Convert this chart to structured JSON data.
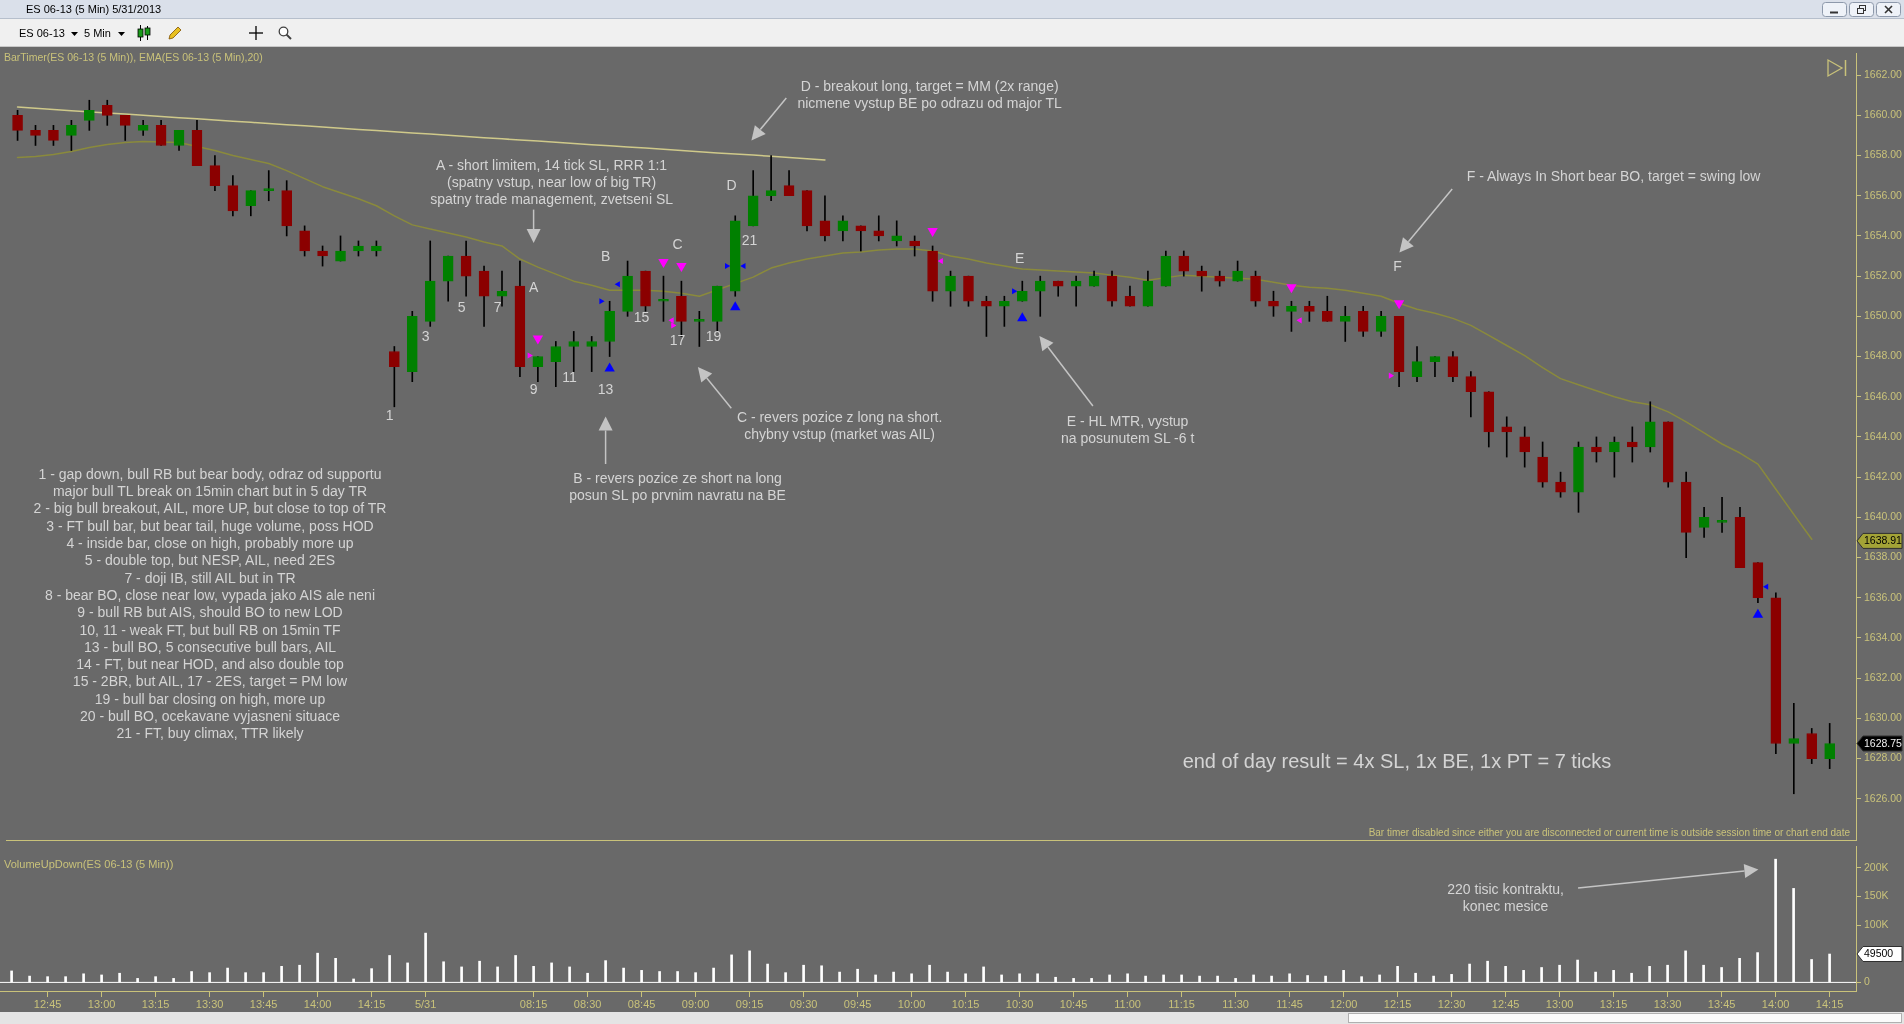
{
  "chart_data": [
    {
      "type": "candlestick",
      "title": "ES 06-13 (5 Min) 5/31/2013",
      "categories": [
        null,
        null,
        null,
        null,
        null,
        null,
        null,
        null,
        null,
        null,
        null,
        null,
        null,
        null,
        null,
        null,
        null,
        null,
        null,
        null,
        null,
        null,
        null,
        null,
        null,
        null,
        null,
        null,
        null,
        null,
        null,
        null,
        null,
        null,
        null,
        null,
        null,
        null,
        null,
        null,
        null,
        null,
        null,
        null,
        null,
        null,
        null,
        null,
        null,
        null,
        null,
        null,
        null,
        null,
        null,
        null,
        null,
        null,
        null,
        null,
        null,
        null,
        null,
        null,
        null,
        null,
        null,
        null,
        null,
        null,
        null,
        null,
        null,
        null,
        null,
        null,
        null,
        null,
        null,
        null,
        null,
        null,
        null,
        null,
        null,
        null,
        null,
        null,
        null,
        null,
        null,
        null,
        null,
        null,
        null,
        null,
        null,
        null,
        null,
        null,
        null,
        null
      ],
      "ohlc": [
        [
          1660.0,
          1660.25,
          1658.75,
          1659.25
        ],
        [
          1659.25,
          1659.5,
          1658.5,
          1659.0
        ],
        [
          1659.25,
          1659.5,
          1658.5,
          1658.75
        ],
        [
          1659.0,
          1659.75,
          1658.25,
          1659.5
        ],
        [
          1659.75,
          1660.75,
          1659.25,
          1660.25
        ],
        [
          1660.5,
          1660.75,
          1659.5,
          1660.0
        ],
        [
          1660.0,
          1660.0,
          1658.75,
          1659.5
        ],
        [
          1659.25,
          1659.75,
          1659.0,
          1659.5
        ],
        [
          1659.5,
          1659.75,
          1658.5,
          1658.5
        ],
        [
          1658.5,
          1659.25,
          1658.25,
          1659.25
        ],
        [
          1659.25,
          1659.75,
          1657.5,
          1657.5
        ],
        [
          1657.5,
          1658.0,
          1656.25,
          1656.5
        ],
        [
          1656.5,
          1657.0,
          1655.0,
          1655.25
        ],
        [
          1655.5,
          1656.25,
          1655.0,
          1656.25
        ],
        [
          1656.25,
          1657.25,
          1655.75,
          1656.25
        ],
        [
          1656.25,
          1656.75,
          1654.0,
          1654.5
        ],
        [
          1654.25,
          1654.5,
          1653.0,
          1653.25
        ],
        [
          1653.25,
          1653.5,
          1652.5,
          1653.0
        ],
        [
          1652.75,
          1654.0,
          1652.75,
          1653.25
        ],
        [
          1653.25,
          1653.75,
          1653.0,
          1653.5
        ],
        [
          1653.25,
          1653.75,
          1653.0,
          1653.5
        ],
        [
          1648.25,
          1648.5,
          1645.5,
          1647.5
        ],
        [
          1647.25,
          1650.25,
          1646.75,
          1650.0
        ],
        [
          1649.75,
          1653.75,
          1649.5,
          1651.75
        ],
        [
          1651.75,
          1653.0,
          1650.75,
          1653.0
        ],
        [
          1653.0,
          1653.75,
          1651.0,
          1652.0
        ],
        [
          1652.25,
          1652.5,
          1649.5,
          1651.0
        ],
        [
          1651.0,
          1652.25,
          1650.5,
          1651.25
        ],
        [
          1651.5,
          1652.75,
          1647.0,
          1647.5
        ],
        [
          1647.5,
          1648.0,
          1646.75,
          1648.0
        ],
        [
          1647.75,
          1648.75,
          1646.5,
          1648.5
        ],
        [
          1648.5,
          1649.25,
          1647.25,
          1648.75
        ],
        [
          1648.5,
          1649.0,
          1647.25,
          1648.75
        ],
        [
          1648.75,
          1650.75,
          1648.0,
          1650.25
        ],
        [
          1650.25,
          1652.75,
          1650.0,
          1652.0
        ],
        [
          1652.25,
          1652.25,
          1650.25,
          1650.5
        ],
        [
          1650.75,
          1652.0,
          1649.75,
          1650.75
        ],
        [
          1651.0,
          1651.75,
          1649.0,
          1649.75
        ],
        [
          1649.75,
          1650.25,
          1648.5,
          1649.75
        ],
        [
          1649.75,
          1651.5,
          1649.25,
          1651.5
        ],
        [
          1651.25,
          1655.0,
          1651.0,
          1654.75
        ],
        [
          1654.5,
          1657.25,
          1654.5,
          1656.0
        ],
        [
          1656.0,
          1658.0,
          1655.75,
          1656.25
        ],
        [
          1656.5,
          1657.25,
          1656.0,
          1656.0
        ],
        [
          1656.25,
          1656.25,
          1654.25,
          1654.5
        ],
        [
          1654.75,
          1656.0,
          1653.75,
          1654.0
        ],
        [
          1654.25,
          1655.0,
          1653.75,
          1654.75
        ],
        [
          1654.5,
          1654.5,
          1653.25,
          1654.25
        ],
        [
          1654.25,
          1655.0,
          1653.75,
          1654.0
        ],
        [
          1653.75,
          1654.75,
          1653.5,
          1654.0
        ],
        [
          1653.75,
          1654.0,
          1653.0,
          1653.5
        ],
        [
          1653.25,
          1653.5,
          1650.75,
          1651.25
        ],
        [
          1651.25,
          1652.25,
          1650.5,
          1652.0
        ],
        [
          1652.0,
          1652.0,
          1650.5,
          1650.75
        ],
        [
          1650.75,
          1651.0,
          1649.0,
          1650.5
        ],
        [
          1650.5,
          1651.0,
          1649.5,
          1650.75
        ],
        [
          1650.75,
          1651.75,
          1650.75,
          1651.25
        ],
        [
          1651.25,
          1652.0,
          1650.0,
          1651.75
        ],
        [
          1651.75,
          1651.75,
          1651.0,
          1651.5
        ],
        [
          1651.5,
          1652.0,
          1650.5,
          1651.75
        ],
        [
          1651.5,
          1652.25,
          1651.5,
          1652.0
        ],
        [
          1652.0,
          1652.25,
          1650.5,
          1650.75
        ],
        [
          1651.0,
          1651.5,
          1650.5,
          1650.5
        ],
        [
          1650.5,
          1652.25,
          1650.5,
          1651.75
        ],
        [
          1651.5,
          1653.25,
          1651.5,
          1653.0
        ],
        [
          1653.0,
          1653.25,
          1652.0,
          1652.25
        ],
        [
          1652.25,
          1652.5,
          1651.25,
          1652.0
        ],
        [
          1652.0,
          1652.25,
          1651.5,
          1651.75
        ],
        [
          1651.75,
          1652.75,
          1651.75,
          1652.25
        ],
        [
          1652.0,
          1652.25,
          1650.5,
          1650.75
        ],
        [
          1650.75,
          1651.25,
          1650.0,
          1650.5
        ],
        [
          1650.25,
          1650.75,
          1649.25,
          1650.5
        ],
        [
          1650.5,
          1650.75,
          1649.75,
          1650.25
        ],
        [
          1650.25,
          1651.0,
          1649.75,
          1649.75
        ],
        [
          1649.75,
          1650.5,
          1648.75,
          1650.0
        ],
        [
          1650.25,
          1650.5,
          1649.0,
          1649.25
        ],
        [
          1649.25,
          1650.25,
          1649.0,
          1650.0
        ],
        [
          1650.0,
          1650.0,
          1646.5,
          1647.25
        ],
        [
          1647.0,
          1648.5,
          1646.75,
          1647.75
        ],
        [
          1647.75,
          1648.0,
          1647.0,
          1648.0
        ],
        [
          1648.0,
          1648.25,
          1646.75,
          1647.0
        ],
        [
          1647.0,
          1647.25,
          1645.0,
          1646.25
        ],
        [
          1646.25,
          1646.25,
          1643.5,
          1644.25
        ],
        [
          1644.5,
          1645.0,
          1643.0,
          1644.25
        ],
        [
          1644.0,
          1644.5,
          1642.5,
          1643.25
        ],
        [
          1643.0,
          1643.75,
          1641.5,
          1641.75
        ],
        [
          1641.75,
          1642.25,
          1641.0,
          1641.25
        ],
        [
          1641.25,
          1643.75,
          1640.25,
          1643.5
        ],
        [
          1643.5,
          1644.0,
          1642.75,
          1643.25
        ],
        [
          1643.25,
          1644.0,
          1642.0,
          1643.75
        ],
        [
          1643.75,
          1644.5,
          1642.75,
          1643.5
        ],
        [
          1643.5,
          1645.75,
          1643.25,
          1644.75
        ],
        [
          1644.75,
          1644.75,
          1641.5,
          1641.75
        ],
        [
          1641.75,
          1642.25,
          1638.0,
          1639.25
        ],
        [
          1639.5,
          1640.5,
          1639.0,
          1640.0
        ],
        [
          1639.75,
          1641.0,
          1639.25,
          1639.75
        ],
        [
          1640.0,
          1640.5,
          1637.5,
          1637.5
        ],
        [
          1637.75,
          1637.75,
          1635.75,
          1636.0
        ],
        [
          1636.0,
          1636.25,
          1628.25,
          1628.75
        ],
        [
          1628.75,
          1630.75,
          1626.25,
          1629.0
        ],
        [
          1629.25,
          1629.5,
          1627.75,
          1628.0
        ],
        [
          1628.0,
          1629.75,
          1627.5,
          1628.75
        ]
      ],
      "colors": [
        "#8b0000",
        "#8b0000",
        "#8b0000",
        "#008000",
        "#008000",
        "#8b0000",
        "#8b0000",
        "#008000",
        "#8b0000",
        "#008000",
        "#8b0000",
        "#8b0000",
        "#8b0000",
        "#008000",
        "#008000",
        "#8b0000",
        "#8b0000",
        "#8b0000",
        "#008000",
        "#008000",
        "#008000",
        "#8b0000",
        "#008000",
        "#008000",
        "#008000",
        "#8b0000",
        "#8b0000",
        "#008000",
        "#8b0000",
        "#008000",
        "#008000",
        "#008000",
        "#008000",
        "#008000",
        "#008000",
        "#8b0000",
        "#008000",
        "#8b0000",
        "#008000",
        "#008000",
        "#008000",
        "#008000",
        "#008000",
        "#8b0000",
        "#8b0000",
        "#8b0000",
        "#008000",
        "#8b0000",
        "#8b0000",
        "#008000",
        "#8b0000",
        "#8b0000",
        "#008000",
        "#8b0000",
        "#8b0000",
        "#008000",
        "#008000",
        "#008000",
        "#8b0000",
        "#008000",
        "#008000",
        "#8b0000",
        "#8b0000",
        "#008000",
        "#008000",
        "#8b0000",
        "#8b0000",
        "#8b0000",
        "#008000",
        "#8b0000",
        "#8b0000",
        "#008000",
        "#8b0000",
        "#8b0000",
        "#008000",
        "#8b0000",
        "#008000",
        "#8b0000",
        "#008000",
        "#008000",
        "#8b0000",
        "#8b0000",
        "#8b0000",
        "#8b0000",
        "#8b0000",
        "#8b0000",
        "#8b0000",
        "#008000",
        "#8b0000",
        "#008000",
        "#8b0000",
        "#008000",
        "#8b0000",
        "#8b0000",
        "#008000",
        "#008000",
        "#8b0000",
        "#8b0000",
        "#8b0000",
        "#008000",
        "#8b0000",
        "#008000"
      ],
      "value_labels": [
        null,
        null,
        null,
        null,
        null,
        null,
        null,
        null,
        null,
        null,
        null,
        null,
        null,
        null,
        null,
        null,
        null,
        null,
        null,
        null,
        null,
        null,
        null,
        null,
        null,
        null,
        null,
        null,
        null,
        null,
        null,
        null,
        null,
        null,
        null,
        null,
        null,
        null,
        null,
        null,
        null,
        null,
        null,
        null,
        null,
        null,
        null,
        null,
        null,
        null,
        null,
        null,
        null,
        null,
        null,
        null,
        null,
        null,
        null,
        null,
        null,
        null,
        null,
        null,
        null,
        null,
        null,
        null,
        null,
        null,
        null,
        null,
        null,
        null,
        null,
        null,
        null,
        null,
        null,
        null,
        null,
        null,
        null,
        null,
        null,
        null,
        null,
        null,
        null,
        null,
        null,
        null,
        null,
        null,
        null,
        null,
        null,
        null,
        null,
        null,
        null,
        "1628.75"
      ],
      "series": [
        {
          "type": "line",
          "color": "#8a8a3c",
          "values": [
            1657.9,
            1657.95,
            1658.05,
            1658.2,
            1658.4,
            1658.55,
            1658.65,
            1658.7,
            null,
            1658.65,
            null,
            1658.25,
            1658.0,
            1657.8,
            1657.6,
            1657.25,
            1656.85,
            1656.45,
            1656.15,
            1655.85,
            1655.5,
            1655.0,
            1654.55,
            1654.35,
            1654.15,
            1653.95,
            1653.7,
            1653.5,
            1652.85,
            1652.45,
            1652.1,
            1651.75,
            1651.55,
            1651.3,
            null,
            1651.3,
            1651.25,
            1651.15,
            1651.0,
            null,
            null,
            1651.95,
            1652.4,
            1652.65,
            1652.85,
            1653.0,
            1653.15,
            1653.2,
            1653.3,
            1653.35,
            1653.35,
            1653.25,
            1653.0,
            1652.85,
            1652.65,
            1652.5,
            1652.35,
            1652.3,
            1652.25,
            1652.2,
            1652.15,
            1652.05,
            1651.95,
            1651.8,
            null,
            1652.05,
            1652.0,
            1651.95,
            null,
            1651.85,
            1651.7,
            1651.55,
            1651.45,
            1651.4,
            1651.3,
            1651.15,
            1651.0,
            1650.65,
            1650.35,
            1650.15,
            1649.9,
            1649.55,
            1649.05,
            1648.55,
            1648.05,
            1647.45,
            1646.9,
            1646.6,
            1646.3,
            1646.0,
            1645.75,
            1645.6,
            1645.25,
            1644.75,
            1644.2,
            1643.65,
            1643.2,
            1642.65,
            1641.4,
            1640.15,
            1638.91,
            null
          ]
        },
        {
          "type": "line",
          "color": "#cfc98a",
          "values": [
            1660.41,
            1660.35,
            1660.29,
            1660.23,
            null,
            1660.12,
            1660.06,
            1660.0,
            1659.94,
            1659.88,
            1659.83,
            1659.77,
            1659.71,
            1659.65,
            1659.59,
            1659.53,
            1659.48,
            1659.42,
            1659.36,
            1659.3,
            1659.24,
            1659.18,
            1659.12,
            1659.07,
            1659.01,
            1658.95,
            1658.89,
            1658.83,
            1658.77,
            1658.72,
            1658.66,
            1658.6,
            1658.54,
            1658.48,
            1658.42,
            1658.37,
            1658.31,
            1658.25,
            1658.19,
            1658.13,
            1658.07,
            1658.02,
            1657.96,
            1657.9,
            1657.84,
            1657.78,
            null,
            null,
            null,
            null,
            null,
            null,
            null,
            null,
            null,
            null,
            null,
            null,
            null,
            null,
            null,
            null,
            null,
            null,
            null,
            null,
            null,
            null,
            null,
            null,
            null,
            null,
            null,
            null,
            null,
            null,
            null,
            null,
            null,
            null,
            null,
            null,
            null,
            null,
            null,
            null,
            null,
            null,
            null,
            null,
            null,
            null,
            null,
            null,
            null,
            null,
            null,
            null,
            null,
            null,
            null,
            null
          ]
        },
        {
          "type": "scatter",
          "color": "#0000ff",
          "marker": "triangle",
          "values": [
            null,
            null,
            null,
            null,
            null,
            null,
            null,
            null,
            null,
            null,
            null,
            null,
            null,
            null,
            null,
            null,
            null,
            null,
            null,
            null,
            null,
            null,
            null,
            null,
            null,
            null,
            null,
            null,
            null,
            null,
            null,
            null,
            null,
            1647.4,
            null,
            null,
            null,
            null,
            null,
            null,
            1650.45,
            null,
            null,
            null,
            null,
            null,
            null,
            null,
            null,
            null,
            null,
            null,
            null,
            null,
            null,
            null,
            1649.9,
            null,
            null,
            null,
            null,
            null,
            null,
            null,
            null,
            null,
            null,
            null,
            null,
            null,
            null,
            null,
            null,
            null,
            null,
            null,
            null,
            null,
            null,
            null,
            null,
            null,
            null,
            null,
            null,
            null,
            null,
            null,
            null,
            null,
            null,
            null,
            null,
            null,
            null,
            null,
            null,
            1635.15,
            null,
            null,
            null,
            null
          ]
        },
        {
          "type": "scatter",
          "color": "#ff00ff",
          "marker": "triangle",
          "values": [
            null,
            null,
            null,
            null,
            null,
            null,
            null,
            null,
            null,
            null,
            null,
            null,
            null,
            null,
            null,
            null,
            null,
            null,
            null,
            null,
            null,
            null,
            null,
            null,
            null,
            null,
            null,
            null,
            null,
            1648.9,
            null,
            null,
            null,
            null,
            null,
            null,
            1652.7,
            1652.5,
            null,
            null,
            null,
            null,
            null,
            null,
            null,
            null,
            null,
            null,
            null,
            null,
            null,
            1654.25,
            null,
            null,
            null,
            null,
            null,
            null,
            null,
            null,
            null,
            null,
            null,
            null,
            null,
            null,
            null,
            null,
            null,
            null,
            null,
            1651.45,
            null,
            null,
            null,
            null,
            null,
            1650.65,
            null,
            null,
            null,
            null,
            null,
            null,
            null,
            null,
            null,
            null,
            null,
            null,
            null,
            null,
            null,
            null,
            null,
            null,
            null,
            null,
            null,
            null,
            null,
            null
          ]
        },
        {
          "type": "scatter",
          "color": "#0000ff",
          "marker": "triangle",
          "values": [
            null,
            null,
            null,
            null,
            null,
            null,
            null,
            null,
            null,
            null,
            null,
            null,
            null,
            null,
            null,
            null,
            null,
            null,
            null,
            null,
            null,
            null,
            null,
            null,
            null,
            null,
            null,
            null,
            null,
            null,
            null,
            null,
            null,
            1650.75,
            null,
            null,
            null,
            null,
            null,
            null,
            1652.5,
            null,
            null,
            null,
            null,
            null,
            null,
            null,
            null,
            null,
            null,
            null,
            null,
            null,
            null,
            null,
            1651.25,
            null,
            null,
            null,
            null,
            null,
            null,
            null,
            null,
            null,
            null,
            null,
            null,
            null,
            null,
            null,
            null,
            null,
            null,
            null,
            null,
            null,
            null,
            null,
            null,
            null,
            null,
            null,
            null,
            null,
            null,
            null,
            null,
            null,
            null,
            null,
            null,
            null,
            null,
            null,
            null,
            null,
            null,
            null,
            null,
            null
          ]
        },
        {
          "type": "scatter",
          "color": "#0000ff",
          "marker": "triangle",
          "values": [
            null,
            null,
            null,
            null,
            null,
            null,
            null,
            null,
            null,
            null,
            null,
            null,
            null,
            null,
            null,
            null,
            null,
            null,
            null,
            null,
            null,
            null,
            null,
            null,
            null,
            null,
            null,
            null,
            null,
            null,
            null,
            null,
            null,
            1651.6,
            null,
            null,
            null,
            null,
            null,
            null,
            1652.5,
            null,
            null,
            null,
            null,
            null,
            null,
            null,
            null,
            null,
            null,
            null,
            null,
            null,
            null,
            null,
            null,
            null,
            null,
            null,
            null,
            null,
            null,
            null,
            null,
            null,
            null,
            null,
            null,
            null,
            null,
            null,
            null,
            null,
            null,
            null,
            null,
            null,
            null,
            null,
            null,
            null,
            null,
            null,
            null,
            null,
            null,
            null,
            null,
            null,
            null,
            null,
            null,
            null,
            null,
            null,
            null,
            1636.55,
            null,
            null,
            null,
            null
          ]
        },
        {
          "type": "scatter",
          "color": "#ff00ff",
          "marker": "triangle",
          "values": [
            null,
            null,
            null,
            null,
            null,
            null,
            null,
            null,
            null,
            null,
            null,
            null,
            null,
            null,
            null,
            null,
            null,
            null,
            null,
            null,
            null,
            null,
            null,
            null,
            null,
            null,
            null,
            null,
            null,
            1648.05,
            null,
            null,
            null,
            null,
            null,
            null,
            null,
            1649.55,
            null,
            null,
            null,
            null,
            null,
            null,
            null,
            null,
            null,
            null,
            null,
            null,
            null,
            null,
            null,
            null,
            null,
            null,
            null,
            null,
            null,
            null,
            null,
            null,
            null,
            null,
            null,
            null,
            null,
            null,
            null,
            null,
            null,
            null,
            null,
            null,
            null,
            null,
            null,
            1647.05,
            null,
            null,
            null,
            null,
            null,
            null,
            null,
            null,
            null,
            null,
            null,
            null,
            null,
            null,
            null,
            null,
            null,
            null,
            null,
            null,
            null,
            null,
            null,
            null
          ]
        },
        {
          "type": "scatter",
          "color": "#ff00ff",
          "marker": "triangle",
          "values": [
            null,
            null,
            null,
            null,
            null,
            null,
            null,
            null,
            null,
            null,
            null,
            null,
            null,
            null,
            null,
            null,
            null,
            null,
            null,
            null,
            null,
            null,
            null,
            null,
            null,
            null,
            null,
            null,
            null,
            null,
            null,
            null,
            null,
            null,
            null,
            null,
            1649.8,
            null,
            null,
            null,
            null,
            null,
            null,
            null,
            null,
            null,
            null,
            null,
            null,
            null,
            null,
            1652.75,
            null,
            null,
            null,
            null,
            null,
            null,
            null,
            null,
            null,
            null,
            null,
            null,
            null,
            null,
            null,
            null,
            null,
            null,
            null,
            1649.8,
            null,
            null,
            null,
            null,
            null,
            null,
            null,
            null,
            null,
            null,
            null,
            null,
            null,
            null,
            null,
            null,
            null,
            null,
            null,
            null,
            null,
            null,
            null,
            null,
            null,
            null,
            null,
            null,
            null,
            null
          ]
        }
      ],
      "ylim": [
        1623.95,
        1663.1
      ],
      "yticks": [
        {
          "value": 1626,
          "label": "1626.00"
        },
        {
          "value": 1628,
          "label": "1628.00"
        },
        {
          "value": 1630,
          "label": "1630.00"
        },
        {
          "value": 1632,
          "label": "1632.00"
        },
        {
          "value": 1634,
          "label": "1634.00"
        },
        {
          "value": 1636,
          "label": "1636.00"
        },
        {
          "value": 1638,
          "label": "1638.00"
        },
        {
          "value": 1640,
          "label": "1640.00"
        },
        {
          "value": 1642,
          "label": "1642.00"
        },
        {
          "value": 1644,
          "label": "1644.00"
        },
        {
          "value": 1646,
          "label": "1646.00"
        },
        {
          "value": 1648,
          "label": "1648.00"
        },
        {
          "value": 1650,
          "label": "1650.00"
        },
        {
          "value": 1652,
          "label": "1652.00"
        },
        {
          "value": 1654,
          "label": "1654.00"
        },
        {
          "value": 1656,
          "label": "1656.00"
        },
        {
          "value": 1658,
          "label": "1658.00"
        },
        {
          "value": 1660,
          "label": "1660.00"
        },
        {
          "value": 1662,
          "label": "1662.00"
        }
      ],
      "annotations": [
        "BarTimer(ES 06-13 (5 Min)), EMA(ES 06-13 (5 Min),20)",
        "1 - gap down, bull RB but bear body, odraz od supportu\nmajor bull TL break on 15min chart but in 5 day TR\n2 - big bull breakout, AIL, more UP, but close to top of TR\n3 - FT bull bar, but bear tail, huge volume, poss HOD\n4 - inside bar, close on high, probably more up\n5 - double top, but NESP, AIL, need 2ES\n7 - doji IB, still AIL but in TR\n8 - bear BO, close near low, vypada jako AIS ale neni\n9 - bull RB but AIS, should BO to new LOD\n10, 11 - weak FT, but bull RB on 15min TF\n13 - bull BO, 5 consecutive bull bars, AIL\n14 - FT, but near HOD, and also double top\n15 - 2BR, but AIL, 17 - 2ES, target = PM low\n19 - bull bar closing on high, more up\n20 - bull BO, ocekavane vyjasneni situace\n21 - FT, buy climax, TTR likely",
        "end of day result = 4x SL, 1x BE, 1x PT = 7 ticks",
        "Bar timer disabled since either you are disconnected or current time is outside session time or chart end date",
        "ES 06-13",
        "5 Min",
        "A - short limitem, 14 tick SL, RRR 1:1\n(spatny vstup, near low of big TR)\nspatny trade management, zvetseni SL",
        "B - revers pozice ze short na long\nposun SL po prvnim navratu na BE",
        "C - revers pozice z long na short.\nchybny vstup (market was AIL)",
        "D - breakout long, target = MM (2x range)\nnicmene vystup BE po odrazu od major TL",
        "E - HL MTR, vystup\nna posunutem SL -6 t",
        "F - Always In Short bear BO, target = swing low",
        "1",
        "3",
        "5",
        "7",
        "A",
        "9",
        "11",
        "B",
        "13",
        "15",
        "C",
        "17",
        "19",
        "D",
        "21",
        "E",
        "F",
        "1638.91"
      ]
    },
    {
      "type": "bar",
      "categories": [
        null,
        null,
        "12:45",
        null,
        null,
        "13:00",
        null,
        null,
        "13:15",
        null,
        null,
        "13:30",
        null,
        null,
        "13:45",
        null,
        null,
        "14:00",
        null,
        null,
        "14:15",
        null,
        null,
        "5/31",
        null,
        null,
        null,
        null,
        null,
        "08:15",
        null,
        null,
        "08:30",
        null,
        null,
        "08:45",
        null,
        null,
        "09:00",
        null,
        null,
        "09:15",
        null,
        null,
        "09:30",
        null,
        null,
        "09:45",
        null,
        null,
        "10:00",
        null,
        null,
        "10:15",
        null,
        null,
        "10:30",
        null,
        null,
        "10:45",
        null,
        null,
        "11:00",
        null,
        null,
        "11:15",
        null,
        null,
        "11:30",
        null,
        null,
        "11:45",
        null,
        null,
        "12:00",
        null,
        null,
        "12:15",
        null,
        null,
        "12:30",
        null,
        null,
        "12:45",
        null,
        null,
        "13:00",
        null,
        null,
        "13:15",
        null,
        null,
        "13:30",
        null,
        null,
        "13:45",
        null,
        null,
        "14:00",
        null,
        null,
        "14:15"
      ],
      "values": [
        20000,
        11000,
        10000,
        10000,
        15000,
        13000,
        16000,
        7000,
        10000,
        7000,
        19000,
        17000,
        25000,
        17000,
        17000,
        28000,
        30000,
        51000,
        42000,
        6000,
        24000,
        47000,
        34000,
        86000,
        36000,
        27000,
        37000,
        27000,
        47000,
        28000,
        34000,
        27000,
        16000,
        38000,
        25000,
        21000,
        19000,
        19000,
        17000,
        25000,
        48000,
        55000,
        32000,
        17000,
        30000,
        29000,
        18000,
        23000,
        13000,
        18000,
        15000,
        30000,
        18000,
        15000,
        27000,
        13000,
        15000,
        15000,
        9000,
        7000,
        7000,
        13000,
        15000,
        11000,
        13000,
        13000,
        11000,
        11000,
        7000,
        13000,
        11000,
        15000,
        12000,
        11000,
        21000,
        10000,
        13000,
        28000,
        16000,
        11000,
        14000,
        32000,
        37000,
        28000,
        21000,
        26000,
        30000,
        39000,
        18000,
        21000,
        16000,
        28000,
        30000,
        55000,
        30000,
        26000,
        42000,
        52000,
        215000,
        164000,
        40000,
        49500
      ],
      "color": "#ffffff",
      "ylim": [
        -15000,
        238000
      ],
      "yticks": [
        {
          "value": 0,
          "label": "0"
        },
        {
          "value": 100000,
          "label": "100K"
        },
        {
          "value": 150000,
          "label": "150K"
        },
        {
          "value": 200000,
          "label": "200K"
        }
      ],
      "ref_lines": [
        {
          "axis": "y",
          "value": 0,
          "color": "#ffffff"
        }
      ],
      "annotations": [
        "VolumeUpDown(ES 06-13 (5 Min))",
        "220 tisic kontraktu,\nkonec mesice",
        "49500"
      ]
    }
  ]
}
